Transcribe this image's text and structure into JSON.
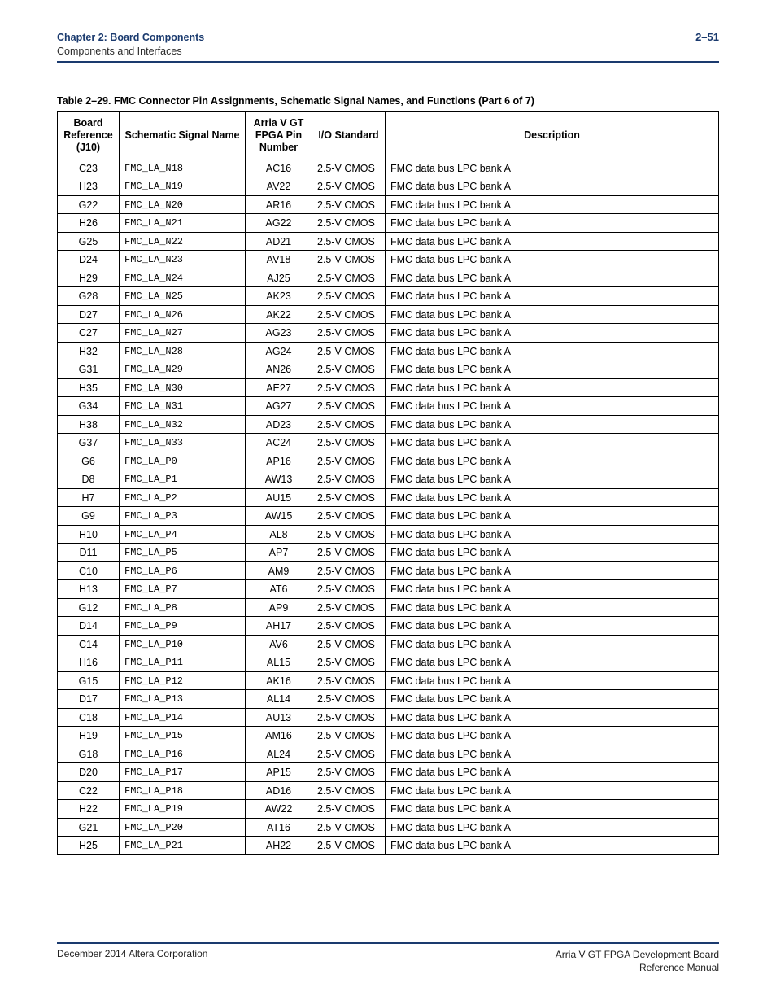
{
  "header": {
    "chapter": "Chapter 2: Board Components",
    "section": "Components and Interfaces",
    "page_number": "2–51"
  },
  "table": {
    "caption": "Table 2–29. FMC Connector Pin Assignments, Schematic Signal Names, and Functions  (Part 6 of 7)",
    "columns": {
      "ref": "Board Reference (J10)",
      "sig": "Schematic Signal Name",
      "pin": "Arria V GT FPGA Pin Number",
      "io": "I/O Standard",
      "desc": "Description"
    },
    "io_standard": "2.5-V CMOS",
    "description": "FMC data bus LPC bank A",
    "rows": [
      {
        "ref": "C23",
        "sig": "FMC_LA_N18",
        "pin": "AC16"
      },
      {
        "ref": "H23",
        "sig": "FMC_LA_N19",
        "pin": "AV22"
      },
      {
        "ref": "G22",
        "sig": "FMC_LA_N20",
        "pin": "AR16"
      },
      {
        "ref": "H26",
        "sig": "FMC_LA_N21",
        "pin": "AG22"
      },
      {
        "ref": "G25",
        "sig": "FMC_LA_N22",
        "pin": "AD21"
      },
      {
        "ref": "D24",
        "sig": "FMC_LA_N23",
        "pin": "AV18"
      },
      {
        "ref": "H29",
        "sig": "FMC_LA_N24",
        "pin": "AJ25"
      },
      {
        "ref": "G28",
        "sig": "FMC_LA_N25",
        "pin": "AK23"
      },
      {
        "ref": "D27",
        "sig": "FMC_LA_N26",
        "pin": "AK22"
      },
      {
        "ref": "C27",
        "sig": "FMC_LA_N27",
        "pin": "AG23"
      },
      {
        "ref": "H32",
        "sig": "FMC_LA_N28",
        "pin": "AG24"
      },
      {
        "ref": "G31",
        "sig": "FMC_LA_N29",
        "pin": "AN26"
      },
      {
        "ref": "H35",
        "sig": "FMC_LA_N30",
        "pin": "AE27"
      },
      {
        "ref": "G34",
        "sig": "FMC_LA_N31",
        "pin": "AG27"
      },
      {
        "ref": "H38",
        "sig": "FMC_LA_N32",
        "pin": "AD23"
      },
      {
        "ref": "G37",
        "sig": "FMC_LA_N33",
        "pin": "AC24"
      },
      {
        "ref": "G6",
        "sig": "FMC_LA_P0",
        "pin": "AP16"
      },
      {
        "ref": "D8",
        "sig": "FMC_LA_P1",
        "pin": "AW13"
      },
      {
        "ref": "H7",
        "sig": "FMC_LA_P2",
        "pin": "AU15"
      },
      {
        "ref": "G9",
        "sig": "FMC_LA_P3",
        "pin": "AW15"
      },
      {
        "ref": "H10",
        "sig": "FMC_LA_P4",
        "pin": "AL8"
      },
      {
        "ref": "D11",
        "sig": "FMC_LA_P5",
        "pin": "AP7"
      },
      {
        "ref": "C10",
        "sig": "FMC_LA_P6",
        "pin": "AM9"
      },
      {
        "ref": "H13",
        "sig": "FMC_LA_P7",
        "pin": "AT6"
      },
      {
        "ref": "G12",
        "sig": "FMC_LA_P8",
        "pin": "AP9"
      },
      {
        "ref": "D14",
        "sig": "FMC_LA_P9",
        "pin": "AH17"
      },
      {
        "ref": "C14",
        "sig": "FMC_LA_P10",
        "pin": "AV6"
      },
      {
        "ref": "H16",
        "sig": "FMC_LA_P11",
        "pin": "AL15"
      },
      {
        "ref": "G15",
        "sig": "FMC_LA_P12",
        "pin": "AK16"
      },
      {
        "ref": "D17",
        "sig": "FMC_LA_P13",
        "pin": "AL14"
      },
      {
        "ref": "C18",
        "sig": "FMC_LA_P14",
        "pin": "AU13"
      },
      {
        "ref": "H19",
        "sig": "FMC_LA_P15",
        "pin": "AM16"
      },
      {
        "ref": "G18",
        "sig": "FMC_LA_P16",
        "pin": "AL24"
      },
      {
        "ref": "D20",
        "sig": "FMC_LA_P17",
        "pin": "AP15"
      },
      {
        "ref": "C22",
        "sig": "FMC_LA_P18",
        "pin": "AD16"
      },
      {
        "ref": "H22",
        "sig": "FMC_LA_P19",
        "pin": "AW22"
      },
      {
        "ref": "G21",
        "sig": "FMC_LA_P20",
        "pin": "AT16"
      },
      {
        "ref": "H25",
        "sig": "FMC_LA_P21",
        "pin": "AH22"
      }
    ]
  },
  "footer": {
    "left": "December 2014   Altera Corporation",
    "right_line1": "Arria V GT FPGA Development Board",
    "right_line2": "Reference Manual"
  }
}
